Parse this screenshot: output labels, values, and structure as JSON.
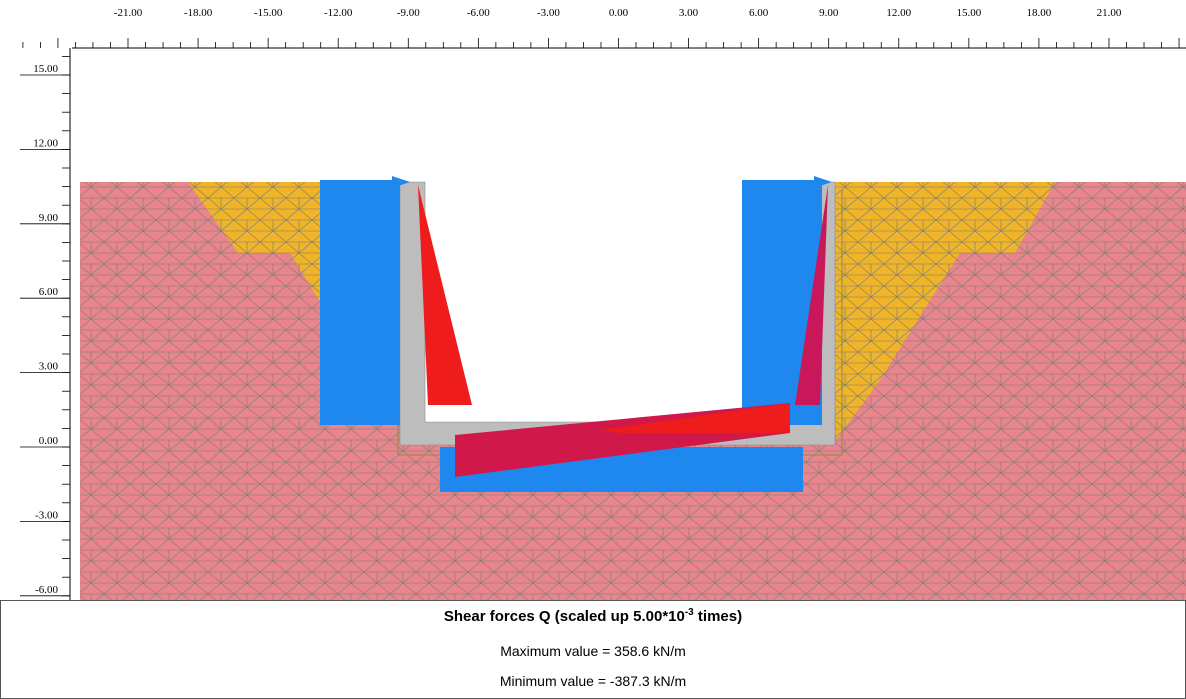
{
  "x_axis_labels": [
    "-21.00",
    "-18.00",
    "-15.00",
    "-12.00",
    "-9.00",
    "-6.00",
    "-3.00",
    "0.00",
    "3.00",
    "6.00",
    "9.00",
    "12.00",
    "15.00",
    "18.00",
    "21.00"
  ],
  "y_axis_labels": [
    "15.00",
    "12.00",
    "9.00",
    "6.00",
    "3.00",
    "0.00",
    "-3.00",
    "-6.00"
  ],
  "caption": {
    "title": "Shear forces Q (scaled up 5.00*10",
    "title_exponent": "-3",
    "title_suffix": " times)",
    "maximum": "Maximum value = 358.6 kN/m",
    "minimum": "Minimum value = -387.3 kN/m"
  }
}
